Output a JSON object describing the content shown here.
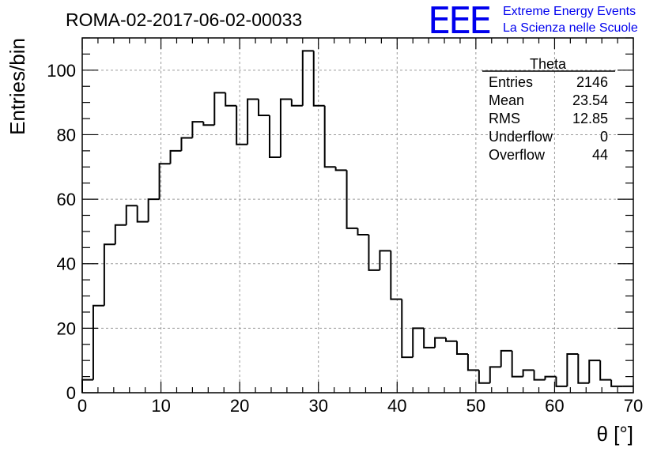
{
  "chart_data": {
    "type": "bar",
    "title": "ROMA-02-2017-06-02-00033",
    "xlabel": "θ [°]",
    "ylabel": "Entries/bin",
    "xlim": [
      0,
      70
    ],
    "ylim": [
      0,
      110
    ],
    "xticks": [
      0,
      10,
      20,
      30,
      40,
      50,
      60,
      70
    ],
    "yticks": [
      0,
      20,
      40,
      60,
      80,
      100
    ],
    "grid": true,
    "bin_width": 1.4,
    "values": [
      4,
      27,
      46,
      52,
      58,
      53,
      60,
      71,
      75,
      79,
      84,
      83,
      93,
      89,
      77,
      91,
      86,
      73,
      91,
      89,
      106,
      89,
      70,
      69,
      51,
      49,
      38,
      44,
      29,
      11,
      20,
      14,
      17,
      16,
      12,
      7,
      3,
      8,
      13,
      5,
      7,
      4,
      5,
      2,
      12,
      3,
      10,
      4,
      2,
      2
    ],
    "stats": {
      "name": "Theta",
      "rows": [
        {
          "label": "Entries",
          "value": "2146"
        },
        {
          "label": "Mean",
          "value": "23.54"
        },
        {
          "label": "RMS",
          "value": "12.85"
        },
        {
          "label": "Underflow",
          "value": "0"
        },
        {
          "label": "Overflow",
          "value": "44"
        }
      ]
    }
  },
  "logo": {
    "mark": "EEE",
    "line1": "Extreme Energy Events",
    "line2": "La Scienza nelle Scuole",
    "color": "#0000ee"
  }
}
